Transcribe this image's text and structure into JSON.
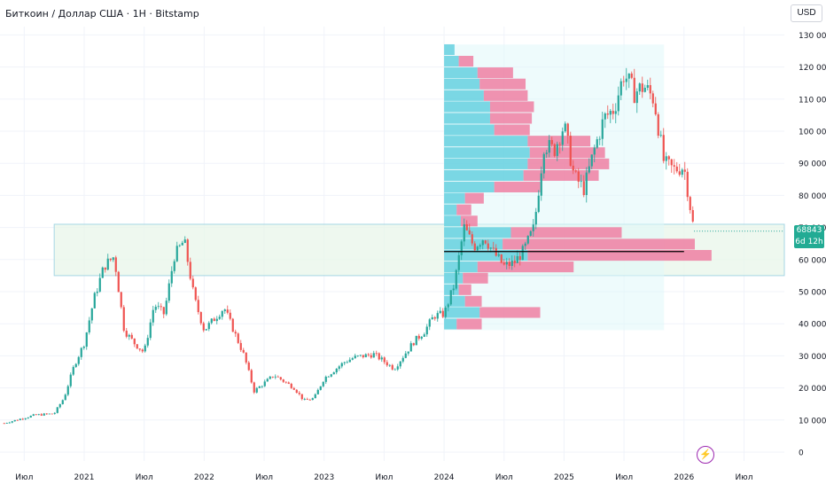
{
  "header": {
    "title": "Биткоин / Доллар США · 1Н · Bitstamp",
    "currency": "USD"
  },
  "price_badge": {
    "price": "68843",
    "countdown": "6d 12h",
    "color": "#22ab94"
  },
  "colors": {
    "up": "#26a69a",
    "down": "#ef5350",
    "vp_cyan": "#6dd3e1",
    "vp_pink": "#ef7fa2",
    "zone": "#e8f5e9"
  },
  "alert_icon": "lightning-bolt-icon",
  "chart_data": {
    "type": "candlestick",
    "y_axis": {
      "ticks": [
        0,
        10000,
        20000,
        30000,
        40000,
        50000,
        60000,
        70000,
        80000,
        90000,
        100000,
        110000,
        120000,
        130000
      ],
      "tick_labels": [
        "0",
        "10 000",
        "20 000",
        "30 000",
        "40 000",
        "50 000",
        "60 000",
        "70 000",
        "80 000",
        "90 000",
        "100 000",
        "110 000",
        "120 000",
        "130 000"
      ],
      "range": [
        0,
        131000
      ]
    },
    "x_axis": {
      "ticks": [
        "2020-07",
        "2021-01",
        "2021-07",
        "2022-01",
        "2022-07",
        "2023-01",
        "2023-07",
        "2024-01",
        "2024-07",
        "2025-01",
        "2025-07",
        "2026-01",
        "2026-07"
      ],
      "tick_labels": [
        "Июл",
        "2021",
        "Июл",
        "2022",
        "Июл",
        "2023",
        "Июл",
        "2024",
        "Июл",
        "2025",
        "Июл",
        "2026",
        "Июл"
      ]
    },
    "last_price": 68843,
    "price_path": [
      [
        "2020-05",
        9000
      ],
      [
        "2020-08",
        11500
      ],
      [
        "2020-10",
        12000
      ],
      [
        "2020-11",
        17000
      ],
      [
        "2020-12",
        27000
      ],
      [
        "2021-01",
        34000
      ],
      [
        "2021-02",
        48000
      ],
      [
        "2021-03",
        58000
      ],
      [
        "2021-04",
        61000
      ],
      [
        "2021-05",
        38000
      ],
      [
        "2021-06",
        34000
      ],
      [
        "2021-07",
        31000
      ],
      [
        "2021-08",
        46000
      ],
      [
        "2021-09",
        43000
      ],
      [
        "2021-10",
        61000
      ],
      [
        "2021-11",
        66000
      ],
      [
        "2021-12",
        48000
      ],
      [
        "2022-01",
        38000
      ],
      [
        "2022-03",
        45000
      ],
      [
        "2022-05",
        30000
      ],
      [
        "2022-06",
        19000
      ],
      [
        "2022-08",
        24000
      ],
      [
        "2022-10",
        20000
      ],
      [
        "2022-11",
        16000
      ],
      [
        "2022-12",
        16800
      ],
      [
        "2023-01",
        23000
      ],
      [
        "2023-03",
        28000
      ],
      [
        "2023-04",
        29500
      ],
      [
        "2023-06",
        30500
      ],
      [
        "2023-08",
        26000
      ],
      [
        "2023-10",
        34500
      ],
      [
        "2023-11",
        37500
      ],
      [
        "2023-12",
        42500
      ],
      [
        "2024-01",
        43000
      ],
      [
        "2024-02",
        52000
      ],
      [
        "2024-03",
        70000
      ],
      [
        "2024-04",
        64000
      ],
      [
        "2024-05",
        67000
      ],
      [
        "2024-06",
        62000
      ],
      [
        "2024-07",
        58000
      ],
      [
        "2024-08",
        59000
      ],
      [
        "2024-09",
        63000
      ],
      [
        "2024-10",
        70000
      ],
      [
        "2024-11",
        96000
      ],
      [
        "2024-12",
        94000
      ],
      [
        "2025-01",
        102000
      ],
      [
        "2025-02",
        86000
      ],
      [
        "2025-03",
        82000
      ],
      [
        "2025-04",
        94000
      ],
      [
        "2025-05",
        104000
      ],
      [
        "2025-06",
        107000
      ],
      [
        "2025-07",
        118000
      ],
      [
        "2025-08",
        112000
      ],
      [
        "2025-09",
        114000
      ],
      [
        "2025-10",
        110000
      ],
      [
        "2025-11",
        90000
      ],
      [
        "2025-12",
        88000
      ],
      [
        "2026-01",
        89000
      ],
      [
        "2026-02",
        68843
      ]
    ],
    "zones": [
      {
        "label": "range-zone",
        "from": "2020-10",
        "to": "end",
        "low": 55000,
        "high": 71000
      }
    ],
    "levels": [
      {
        "price": 62500,
        "from": "2024-01",
        "to": "2026-01"
      }
    ],
    "volume_profile": {
      "from_date": "2024-01",
      "to_date": "2025-11",
      "price_low": 38000,
      "price_high": 127000,
      "row_height": 3560,
      "rows": [
        {
          "price": 39800,
          "up": 0.06,
          "down": 0.12
        },
        {
          "price": 43400,
          "up": 0.17,
          "down": 0.29
        },
        {
          "price": 46900,
          "up": 0.1,
          "down": 0.08
        },
        {
          "price": 50500,
          "up": 0.07,
          "down": 0.06
        },
        {
          "price": 54100,
          "up": 0.09,
          "down": 0.12
        },
        {
          "price": 57600,
          "up": 0.16,
          "down": 0.46
        },
        {
          "price": 61200,
          "up": 0.4,
          "down": 0.88
        },
        {
          "price": 64700,
          "up": 0.28,
          "down": 0.92
        },
        {
          "price": 68300,
          "up": 0.32,
          "down": 0.53
        },
        {
          "price": 71900,
          "up": 0.08,
          "down": 0.08
        },
        {
          "price": 75400,
          "up": 0.06,
          "down": 0.07
        },
        {
          "price": 79000,
          "up": 0.1,
          "down": 0.09
        },
        {
          "price": 82500,
          "up": 0.24,
          "down": 0.22
        },
        {
          "price": 86100,
          "up": 0.38,
          "down": 0.36
        },
        {
          "price": 89700,
          "up": 0.4,
          "down": 0.39
        },
        {
          "price": 93200,
          "up": 0.41,
          "down": 0.36
        },
        {
          "price": 96800,
          "up": 0.4,
          "down": 0.3
        },
        {
          "price": 100300,
          "up": 0.24,
          "down": 0.17
        },
        {
          "price": 103900,
          "up": 0.22,
          "down": 0.2
        },
        {
          "price": 107500,
          "up": 0.22,
          "down": 0.21
        },
        {
          "price": 111000,
          "up": 0.19,
          "down": 0.21
        },
        {
          "price": 114600,
          "up": 0.17,
          "down": 0.22
        },
        {
          "price": 118100,
          "up": 0.16,
          "down": 0.17
        },
        {
          "price": 121700,
          "up": 0.07,
          "down": 0.07
        },
        {
          "price": 125300,
          "up": 0.05,
          "down": 0.0
        }
      ]
    },
    "grid": true
  }
}
